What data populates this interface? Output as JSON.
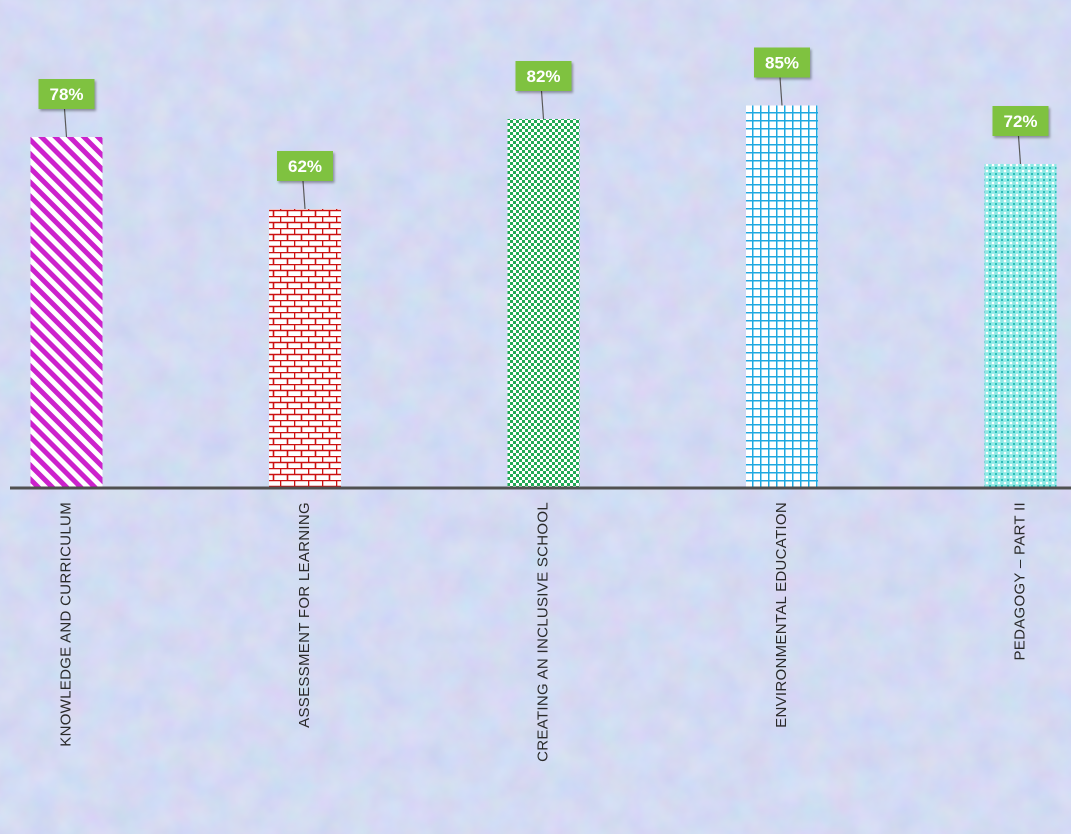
{
  "chart_data": {
    "type": "bar",
    "categories": [
      "KNOWLEDGE AND CURRICULUM",
      "ASSESSMENT FOR LEARNING",
      "CREATING AN INCLUSIVE SCHOOL",
      "ENVIRONMENTAL EDUCATION",
      "PEDAGOGY – PART II"
    ],
    "values": [
      78,
      62,
      82,
      85,
      72
    ],
    "value_labels": [
      "78%",
      "62%",
      "82%",
      "85%",
      "72%"
    ],
    "title": "",
    "xlabel": "",
    "ylabel": "",
    "ylim": [
      0,
      100
    ],
    "grid": false,
    "legend": "none",
    "colors": [
      "#cc22cc",
      "#cc1111",
      "#22aa55",
      "#1ea8e0",
      "#33d6d0"
    ],
    "patterns": [
      "diagonal-stripes",
      "bricks",
      "checkerboard",
      "grid",
      "dotted-grid"
    ],
    "label_box_color": "#7fc241",
    "axis_color": "#505050"
  }
}
